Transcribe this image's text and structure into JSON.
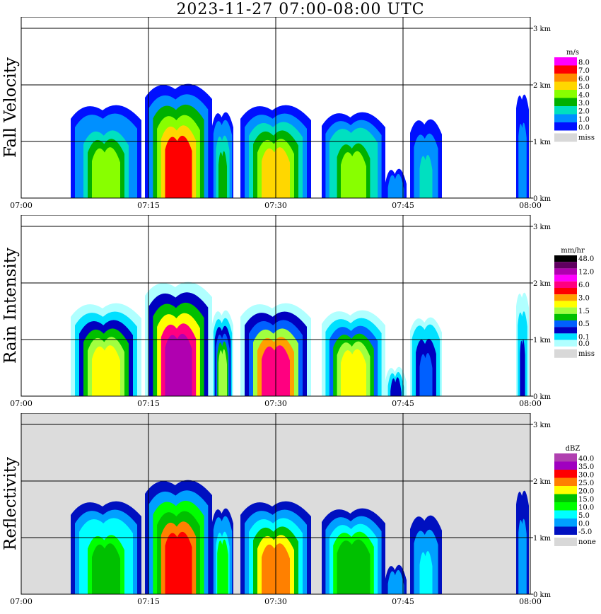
{
  "title": "2023-11-27  07:00-08:00 UTC",
  "time_ticks": [
    "07:00",
    "07:15",
    "07:30",
    "07:45",
    "08:00"
  ],
  "height_ticks": [
    "0 km",
    "1 km",
    "2 km",
    "3 km"
  ],
  "chart_data": [
    {
      "type": "heatmap",
      "title": "Fall Velocity",
      "xlabel": "",
      "ylabel": "Fall Velocity",
      "xlim": [
        "07:00",
        "08:00"
      ],
      "ylim_km": [
        0,
        3.2
      ],
      "legend": {
        "unit": "m/s",
        "levels": [
          "8.0",
          "7.0",
          "6.0",
          "5.0",
          "4.0",
          "3.0",
          "2.0",
          "1.0",
          "0.0"
        ],
        "colors": [
          "#ff00ff",
          "#ff0000",
          "#ff8c00",
          "#ffd700",
          "#88ff00",
          "#00b000",
          "#00e0c0",
          "#0090ff",
          "#0010ff"
        ],
        "missing_label": "miss",
        "missing_color": "#d8d8d8"
      },
      "background_color": "#ffffff"
    },
    {
      "type": "heatmap",
      "title": "Rain Intensity",
      "xlabel": "",
      "ylabel": "Rain Intensity",
      "xlim": [
        "07:00",
        "08:00"
      ],
      "ylim_km": [
        0,
        3.2
      ],
      "legend": {
        "unit": "mm/hr",
        "levels": [
          "48.0",
          "",
          "12.0",
          "",
          "6.0",
          "",
          "3.0",
          "",
          "1.5",
          "",
          "0.5",
          "",
          "0.1",
          "0.0"
        ],
        "colors": [
          "#000000",
          "#600060",
          "#b000b0",
          "#ff00ff",
          "#ff0080",
          "#ff0000",
          "#ffa000",
          "#ffff00",
          "#a0ff40",
          "#00c000",
          "#0060ff",
          "#0000c0",
          "#00e0ff",
          "#b0ffff"
        ],
        "missing_label": "miss",
        "missing_color": "#d8d8d8"
      },
      "background_color": "#ffffff"
    },
    {
      "type": "heatmap",
      "title": "Reflectivity",
      "xlabel": "",
      "ylabel": "Reflectivity",
      "xlim": [
        "07:00",
        "08:00"
      ],
      "ylim_km": [
        0,
        3.2
      ],
      "legend": {
        "unit": "dBZ",
        "levels": [
          "40.0",
          "35.0",
          "30.0",
          "25.0",
          "20.0",
          "15.0",
          "10.0",
          "5.0",
          "0.0",
          "-5.0"
        ],
        "colors": [
          "#b040b0",
          "#a000c0",
          "#ff0000",
          "#ff8000",
          "#ffff00",
          "#00c000",
          "#00ff00",
          "#00ffff",
          "#00a0ff",
          "#0010c0"
        ],
        "missing_label": "none",
        "missing_color": "#d8d8d8"
      },
      "background_color": "#dcdcdc"
    }
  ]
}
